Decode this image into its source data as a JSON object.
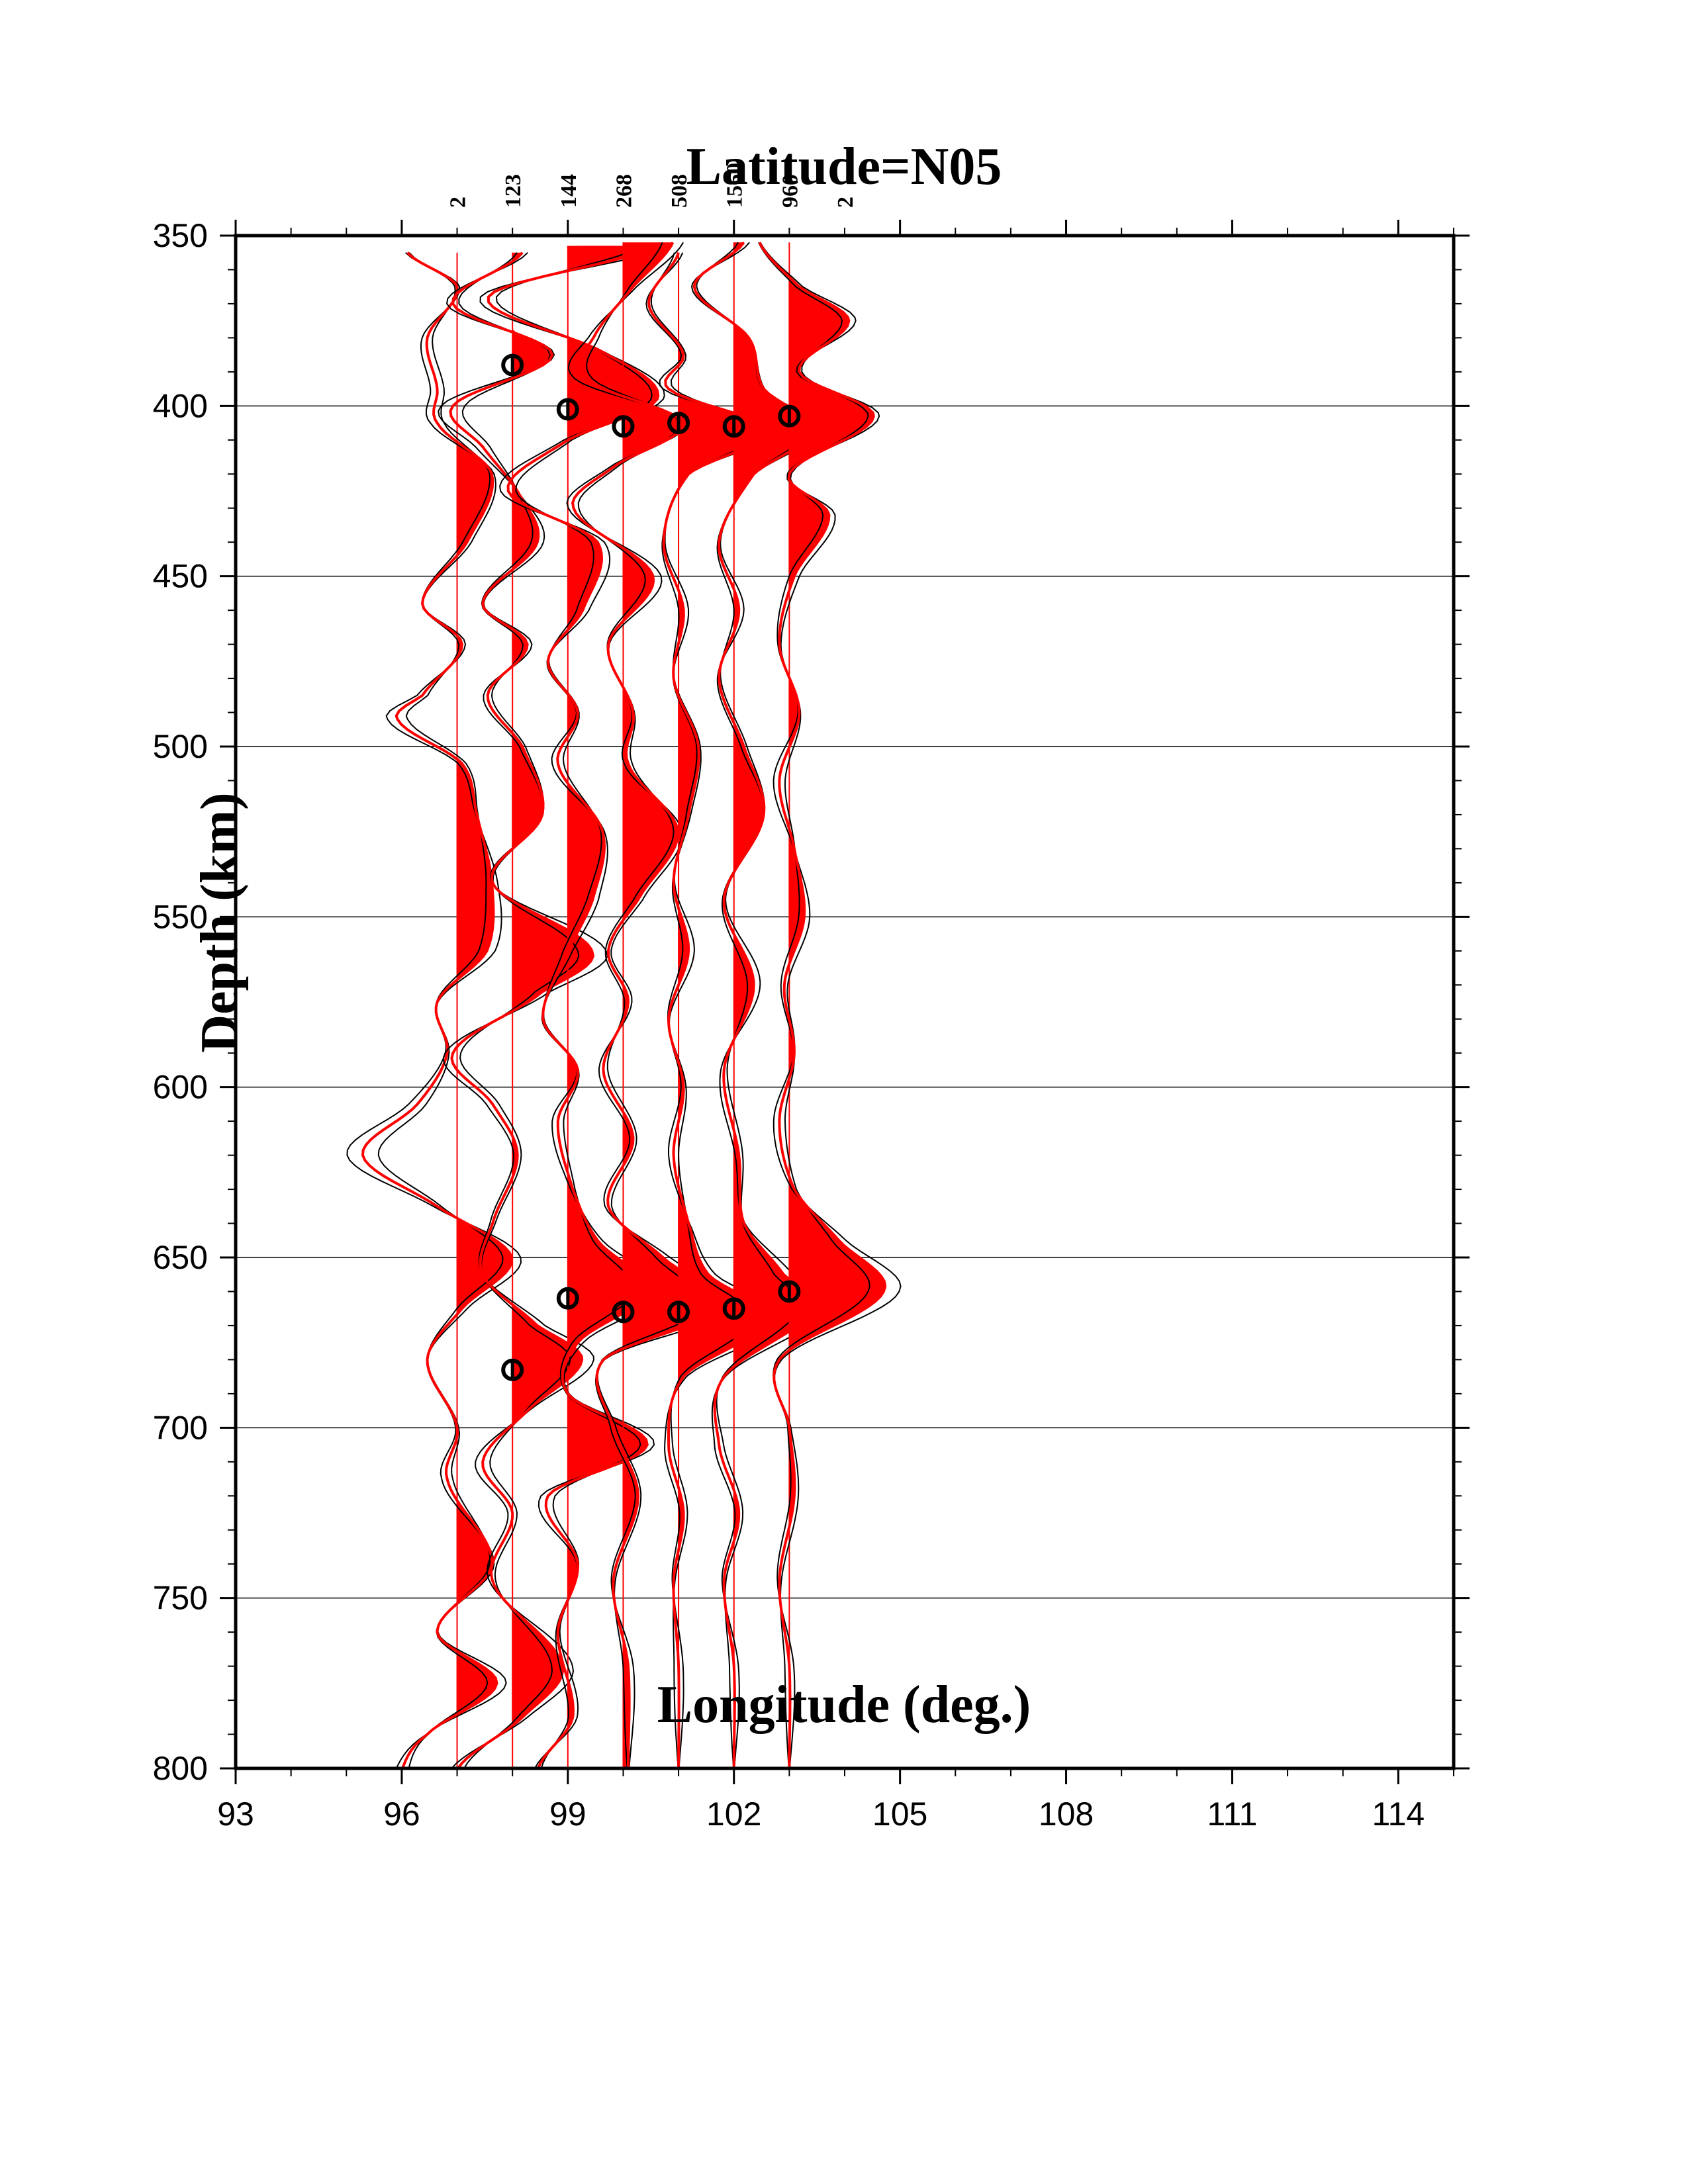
{
  "chart_data": {
    "type": "line",
    "title": "Latitude=N05",
    "xlabel": "Longitude (deg.)",
    "ylabel": "Depth (km)",
    "xlim": [
      93,
      115
    ],
    "ylim": [
      350,
      800
    ],
    "y_reversed": true,
    "grid": "horizontal",
    "xticks": [
      "93",
      "96",
      "99",
      "102",
      "105",
      "108",
      "111",
      "114"
    ],
    "yticks": [
      "350",
      "400",
      "450",
      "500",
      "550",
      "600",
      "650",
      "700",
      "750",
      "800"
    ],
    "trace_counts": [
      "2",
      "123",
      "144",
      "268",
      "508",
      "1560",
      "960",
      "2"
    ],
    "trace_count_lon": [
      97,
      98,
      99,
      100,
      101,
      102,
      103,
      104
    ],
    "traces": [
      {
        "lon": 97,
        "depth": [
          355,
          365,
          380,
          395,
          405,
          420,
          440,
          458,
          470,
          485,
          492,
          505,
          520,
          540,
          560,
          575,
          590,
          605,
          620,
          635,
          650,
          665,
          680,
          700,
          715,
          740,
          760,
          775,
          790,
          800
        ],
        "amp": [
          -0.5,
          0.0,
          -0.3,
          -0.2,
          -0.2,
          0.35,
          0.1,
          -0.35,
          0.05,
          -0.35,
          -0.6,
          0.05,
          0.2,
          0.35,
          0.3,
          -0.2,
          -0.1,
          -0.4,
          -0.95,
          -0.2,
          0.55,
          0.05,
          -0.3,
          0.0,
          -0.1,
          0.35,
          -0.2,
          0.4,
          -0.3,
          -0.55
        ]
      },
      {
        "lon": 98,
        "depth": [
          355,
          370,
          385,
          400,
          412,
          425,
          440,
          458,
          470,
          485,
          500,
          520,
          540,
          560,
          572,
          590,
          605,
          620,
          640,
          655,
          670,
          680,
          695,
          710,
          725,
          745,
          770,
          785,
          800
        ],
        "amp": [
          0.1,
          -0.6,
          0.4,
          -0.6,
          -0.3,
          0.05,
          0.25,
          -0.3,
          0.15,
          -0.25,
          0.1,
          0.3,
          -0.2,
          0.8,
          0.3,
          -0.6,
          -0.2,
          0.05,
          -0.2,
          -0.3,
          0.25,
          0.7,
          0.15,
          -0.3,
          0.0,
          -0.2,
          0.5,
          0.1,
          -0.55
        ]
      },
      {
        "lon": 99,
        "depth": [
          353,
          368,
          385,
          398,
          410,
          425,
          440,
          460,
          475,
          490,
          505,
          525,
          545,
          560,
          580,
          595,
          610,
          630,
          645,
          660,
          675,
          690,
          705,
          720,
          740,
          760,
          785,
          800
        ],
        "amp": [
          0.9,
          -0.8,
          0.4,
          0.9,
          0.0,
          -0.6,
          0.3,
          0.15,
          -0.2,
          0.1,
          -0.1,
          0.35,
          0.25,
          0.0,
          -0.25,
          0.1,
          -0.1,
          0.05,
          0.3,
          0.8,
          0.1,
          0.0,
          0.8,
          -0.2,
          0.1,
          -0.1,
          0.05,
          -0.3
        ]
      },
      {
        "lon": 100,
        "depth": [
          352,
          365,
          380,
          392,
          405,
          418,
          430,
          450,
          470,
          490,
          505,
          525,
          545,
          560,
          575,
          595,
          615,
          635,
          650,
          665,
          680,
          700,
          720,
          745,
          770,
          800
        ],
        "amp": [
          0.5,
          0.1,
          -0.3,
          -0.4,
          0.6,
          -0.1,
          -0.5,
          0.3,
          -0.15,
          0.1,
          0.05,
          0.55,
          0.15,
          -0.15,
          0.05,
          -0.2,
          0.1,
          -0.15,
          0.4,
          0.95,
          -0.2,
          -0.1,
          0.15,
          -0.1,
          0.05,
          0.05
        ]
      },
      {
        "lon": 101,
        "depth": [
          355,
          370,
          385,
          395,
          407,
          420,
          440,
          460,
          480,
          500,
          520,
          540,
          560,
          580,
          600,
          620,
          640,
          655,
          668,
          685,
          705,
          725,
          745,
          770,
          800
        ],
        "amp": [
          0.0,
          -0.3,
          0.05,
          -0.1,
          0.9,
          0.1,
          -0.15,
          0.05,
          -0.05,
          0.2,
          0.1,
          -0.05,
          0.1,
          -0.1,
          0.05,
          -0.05,
          0.1,
          0.3,
          0.9,
          0.05,
          -0.1,
          0.05,
          -0.05,
          0.0,
          0.0
        ]
      },
      {
        "lon": 102,
        "depth": [
          352,
          365,
          380,
          395,
          407,
          420,
          440,
          460,
          480,
          500,
          520,
          545,
          570,
          595,
          620,
          640,
          655,
          665,
          685,
          705,
          725,
          745,
          770,
          800
        ],
        "amp": [
          0.1,
          -0.4,
          0.15,
          0.3,
          0.8,
          0.2,
          -0.15,
          0.05,
          -0.15,
          0.1,
          0.3,
          -0.1,
          0.2,
          -0.1,
          0.05,
          0.1,
          0.5,
          0.8,
          -0.1,
          -0.15,
          0.05,
          -0.1,
          0.0,
          0.0
        ]
      },
      {
        "lon": 103,
        "depth": [
          352,
          365,
          375,
          390,
          403,
          420,
          432,
          450,
          470,
          490,
          510,
          530,
          550,
          570,
          590,
          610,
          630,
          645,
          660,
          680,
          700,
          720,
          745,
          770,
          800
        ],
        "amp": [
          -0.3,
          0.1,
          0.6,
          0.1,
          0.85,
          0.0,
          0.4,
          0.05,
          -0.1,
          0.1,
          -0.1,
          0.05,
          0.15,
          -0.05,
          0.05,
          -0.1,
          0.05,
          0.5,
          0.95,
          -0.1,
          0.0,
          0.05,
          -0.1,
          0.0,
          0.0
        ]
      }
    ],
    "discontinuity_picks": [
      {
        "lon": 98,
        "depth": 388
      },
      {
        "lon": 99,
        "depth": 401
      },
      {
        "lon": 100,
        "depth": 406
      },
      {
        "lon": 101,
        "depth": 405
      },
      {
        "lon": 102,
        "depth": 406
      },
      {
        "lon": 103,
        "depth": 403
      },
      {
        "lon": 98,
        "depth": 683
      },
      {
        "lon": 99,
        "depth": 662
      },
      {
        "lon": 100,
        "depth": 666
      },
      {
        "lon": 101,
        "depth": 666
      },
      {
        "lon": 102,
        "depth": 665
      },
      {
        "lon": 103,
        "depth": 660
      }
    ],
    "colors": {
      "fill": "#ff0000",
      "trace_red": "#ff0000",
      "trace_black": "#000000",
      "grid": "#000000"
    }
  }
}
